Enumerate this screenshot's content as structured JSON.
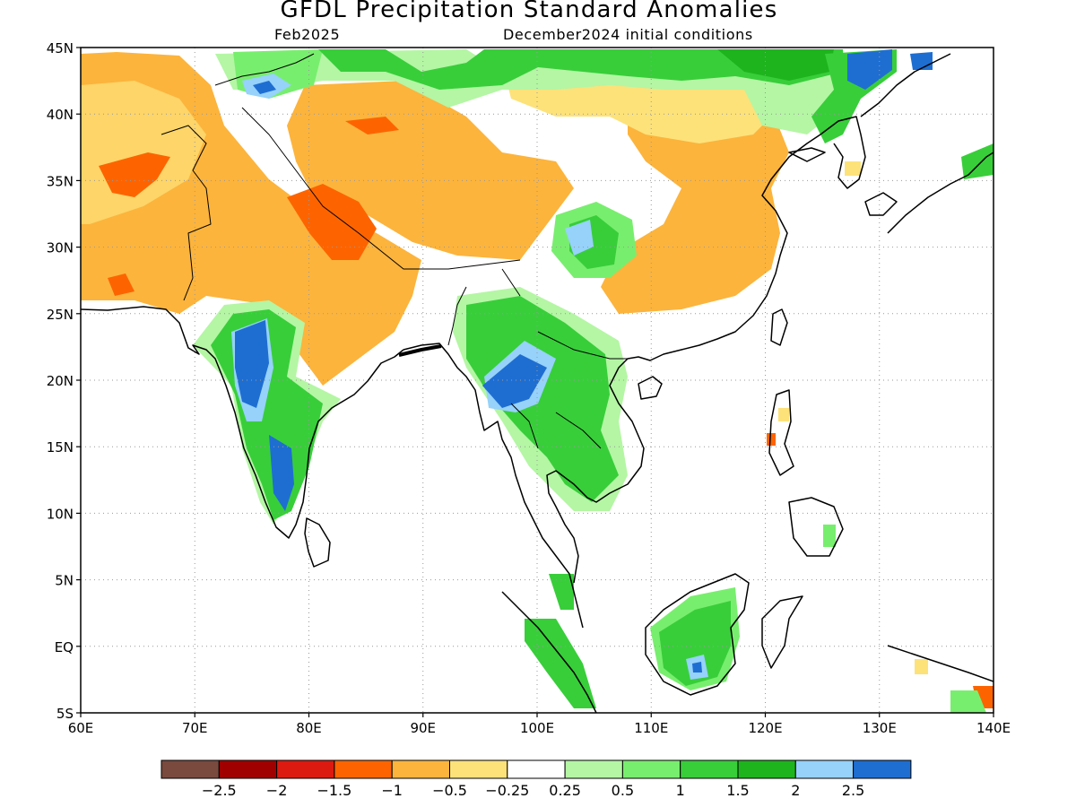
{
  "title": "GFDL Precipitation Standard Anomalies",
  "subtitle_left": "Feb2025",
  "subtitle_right": "December2024 initial conditions",
  "map": {
    "lon_range": [
      60,
      140
    ],
    "lat_range": [
      -5,
      45
    ],
    "lon_labels": [
      "60E",
      "70E",
      "80E",
      "90E",
      "100E",
      "110E",
      "120E",
      "130E",
      "140E"
    ],
    "lat_labels": [
      "45N",
      "40N",
      "35N",
      "30N",
      "25N",
      "20N",
      "15N",
      "10N",
      "5N",
      "EQ",
      "5S"
    ],
    "grid": "dotted"
  },
  "colorbar": {
    "colors": [
      "#7a4a3e",
      "#a00000",
      "#dd1a10",
      "#fd6400",
      "#fcb43c",
      "#fde27a",
      "#ffffff",
      "#b4f6a4",
      "#78ee6e",
      "#38ce3a",
      "#1eb41e",
      "#96d2fa",
      "#1e6ed2"
    ],
    "labels": [
      "−2.5",
      "−2",
      "−1.5",
      "−1",
      "−0.5",
      "−0.25",
      "0.25",
      "0.5",
      "1",
      "1.5",
      "2",
      "2.5"
    ]
  },
  "colors": {
    "orange_light": "#fcb43c",
    "orange_dark": "#fd6400",
    "yellow": "#fde27a",
    "green_light": "#b4f6a4",
    "green_mid": "#78ee6e",
    "green": "#38ce3a",
    "green_dark": "#1eb41e",
    "blue_light": "#96d2fa",
    "blue": "#1e6ed2",
    "coast": "#000000"
  }
}
